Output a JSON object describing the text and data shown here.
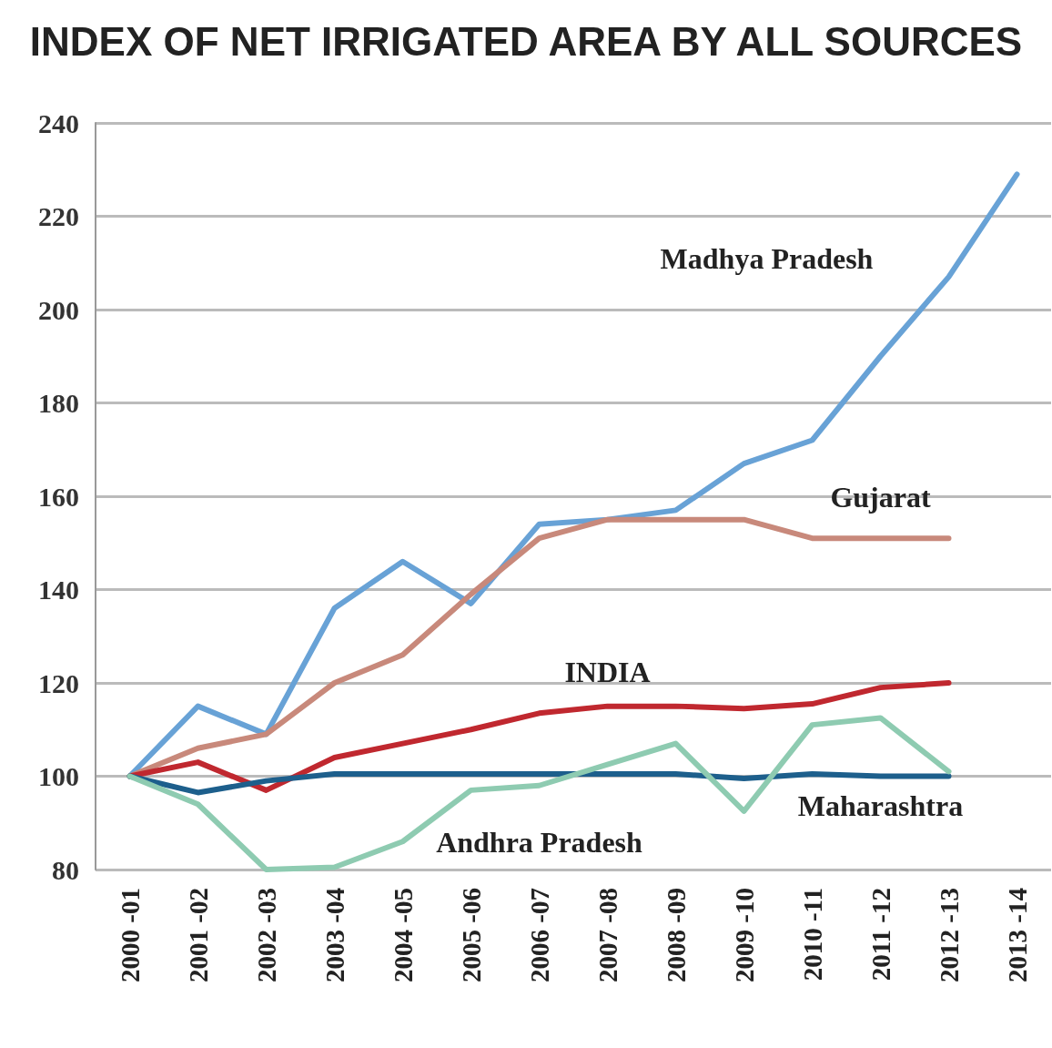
{
  "chart_data": {
    "type": "line",
    "title": "INDEX OF NET IRRIGATED AREA BY ALL SOURCES",
    "categories": [
      "2000 -01",
      "2001 -02",
      "2002 -03",
      "2003 -04",
      "2004 -05",
      "2005 -06",
      "2006 -07",
      "2007 -08",
      "2008 -09",
      "2009 -10",
      "2010 -11",
      "2011 -12",
      "2012 -13",
      "2013 -14"
    ],
    "series": [
      {
        "name": "Madhya Pradesh",
        "color": "#68a2d6",
        "values": [
          100,
          115,
          109,
          136,
          146,
          137,
          154,
          155,
          157,
          167,
          172,
          190,
          207,
          229
        ]
      },
      {
        "name": "Gujarat",
        "color": "#c8897b",
        "values": [
          100,
          106,
          109,
          120,
          126,
          139,
          151,
          155,
          155,
          155,
          151,
          151,
          151,
          null
        ]
      },
      {
        "name": "INDIA",
        "color": "#c0282f",
        "values": [
          100,
          103,
          97,
          104,
          107,
          110,
          113.5,
          115,
          115,
          114.5,
          115.5,
          119,
          120,
          null
        ]
      },
      {
        "name": "Maharashtra",
        "color": "#1d5f8c",
        "values": [
          100,
          96.5,
          99,
          100.5,
          100.5,
          100.5,
          100.5,
          100.5,
          100.5,
          99.5,
          100.5,
          100,
          100,
          null
        ]
      },
      {
        "name": "Andhra Pradesh",
        "color": "#8ecbb1",
        "values": [
          100,
          94,
          80,
          80.5,
          86,
          97,
          98,
          102.5,
          107,
          92.5,
          111,
          112.5,
          101,
          null
        ]
      }
    ],
    "ylim": [
      80,
      240
    ],
    "yticks": [
      80,
      100,
      120,
      140,
      160,
      180,
      200,
      220,
      240
    ],
    "grid": "y",
    "legend": false,
    "marker": "none",
    "line_style": "solid"
  }
}
